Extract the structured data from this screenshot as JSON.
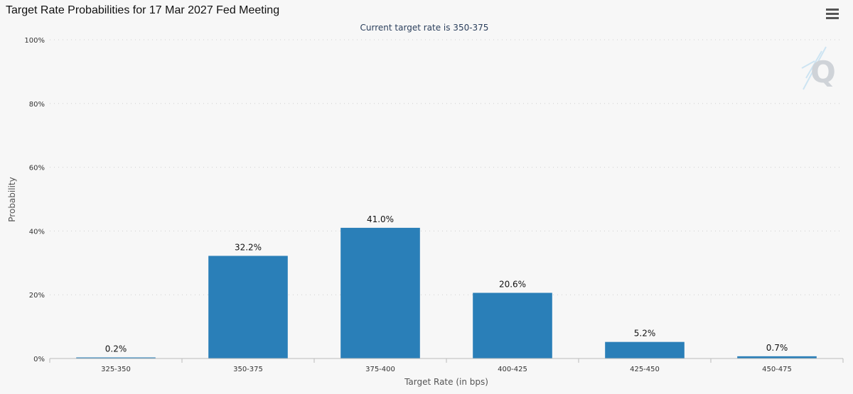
{
  "header": {
    "title": "Target Rate Probabilities for 17 Mar 2027 Fed Meeting",
    "menu_icon": "hamburger-menu-icon"
  },
  "watermark": {
    "letter": "Q",
    "icon": "quikstrike-q-logo-icon"
  },
  "colors": {
    "bar": "#2a7fb8",
    "grid": "#d0d0d0",
    "axis_text": "#333333",
    "subtitle": "#2b3f5c"
  },
  "chart_data": {
    "type": "bar",
    "title": "Target Rate Probabilities for 17 Mar 2027 Fed Meeting",
    "subtitle": "Current target rate is 350-375",
    "xlabel": "Target Rate (in bps)",
    "ylabel": "Probability",
    "categories": [
      "325-350",
      "350-375",
      "375-400",
      "400-425",
      "425-450",
      "450-475"
    ],
    "values": [
      0.2,
      32.2,
      41.0,
      20.6,
      5.2,
      0.7
    ],
    "data_labels": [
      "0.2%",
      "32.2%",
      "41.0%",
      "20.6%",
      "5.2%",
      "0.7%"
    ],
    "ylim": [
      0,
      100
    ],
    "yticks": [
      0,
      20,
      40,
      60,
      80,
      100
    ],
    "ytick_labels": [
      "0%",
      "20%",
      "40%",
      "60%",
      "80%",
      "100%"
    ],
    "grid": true,
    "legend": "none"
  }
}
